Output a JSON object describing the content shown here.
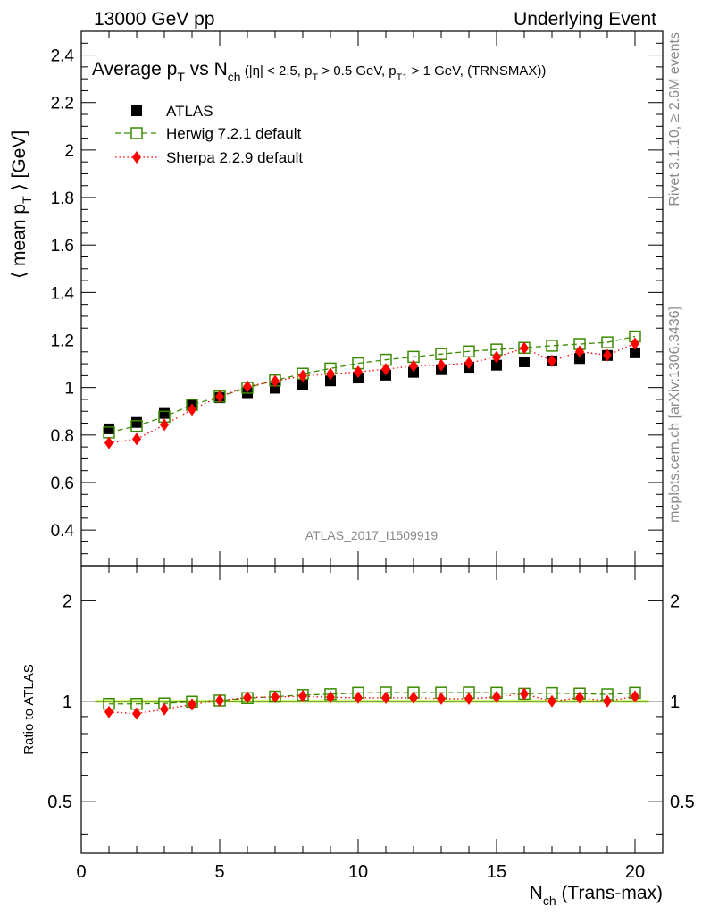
{
  "header": {
    "left": "13000 GeV pp",
    "right": "Underlying Event"
  },
  "plot_title": {
    "main": "Average p",
    "main_sub": "T",
    "vs": " vs N",
    "vs_sub": "ch",
    "cuts_1": " (|η| < 2.5, p",
    "cuts_1_sub": "T",
    "cuts_2": " > 0.5 GeV, p",
    "cuts_2_sub": "T1",
    "cuts_3": " > 1 GeV, (TRNSMAX))"
  },
  "side_labels": {
    "rivet": "Rivet 3.1.10, ≥ 2.6M events",
    "mcplots": "mcplots.cern.ch [arXiv:1306.3436]"
  },
  "analysis_id": "ATLAS_2017_I1509919",
  "colors": {
    "atlas": "#000000",
    "herwig": "#3a8a00",
    "sherpa": "#ff0000",
    "band": "#ccff66"
  },
  "chart_data": [
    {
      "type": "scatter",
      "name": "main",
      "ylabel_pre": "⟨ mean p",
      "ylabel_sub": "T",
      "ylabel_post": " ⟩ [GeV]",
      "xlim": [
        0,
        21
      ],
      "ylim": [
        0.25,
        2.5
      ],
      "yticks": [
        0.4,
        0.6,
        0.8,
        1,
        1.2,
        1.4,
        1.6,
        1.8,
        2,
        2.2,
        2.4
      ],
      "ytick_labels": [
        "0.4",
        "0.6",
        "0.8",
        "1",
        "1.2",
        "1.4",
        "1.6",
        "1.8",
        "2",
        "2.2",
        "2.4"
      ],
      "x": [
        1,
        2,
        3,
        4,
        5,
        6,
        7,
        8,
        9,
        10,
        11,
        12,
        13,
        14,
        15,
        16,
        17,
        18,
        19,
        20
      ],
      "series": [
        {
          "name": "ATLAS",
          "marker": "filled-square",
          "values": [
            0.826,
            0.853,
            0.891,
            0.927,
            0.957,
            0.978,
            0.997,
            1.013,
            1.028,
            1.04,
            1.052,
            1.064,
            1.075,
            1.085,
            1.094,
            1.108,
            1.112,
            1.122,
            1.135,
            1.146
          ]
        },
        {
          "name": "Herwig 7.2.1 default",
          "marker": "open-square",
          "line": "dashed",
          "values": [
            0.811,
            0.838,
            0.877,
            0.927,
            0.962,
            0.999,
            1.03,
            1.058,
            1.08,
            1.102,
            1.117,
            1.129,
            1.141,
            1.152,
            1.16,
            1.167,
            1.176,
            1.183,
            1.19,
            1.215
          ]
        },
        {
          "name": "Sherpa 2.2.9 default",
          "marker": "filled-diamond",
          "line": "dotted",
          "values": [
            0.767,
            0.783,
            0.843,
            0.907,
            0.962,
            1.004,
            1.027,
            1.049,
            1.057,
            1.066,
            1.077,
            1.091,
            1.094,
            1.103,
            1.128,
            1.166,
            1.112,
            1.151,
            1.136,
            1.185
          ]
        }
      ]
    },
    {
      "type": "scatter",
      "name": "ratio",
      "ylabel": "Ratio to ATLAS",
      "xlabel_pre": "N",
      "xlabel_sub": "ch",
      "xlabel_post": " (Trans-max)",
      "xlim": [
        0,
        21
      ],
      "ylim": [
        0.35,
        2.55
      ],
      "yscale": "log",
      "yticks": [
        0.5,
        1,
        2
      ],
      "ytick_labels": [
        "0.5",
        "1",
        "2"
      ],
      "xticks": [
        0,
        5,
        10,
        15,
        20
      ],
      "xtick_labels": [
        "0",
        "5",
        "10",
        "15",
        "20"
      ],
      "x": [
        1,
        2,
        3,
        4,
        5,
        6,
        7,
        8,
        9,
        10,
        11,
        12,
        13,
        14,
        15,
        16,
        17,
        18,
        19,
        20
      ],
      "series": [
        {
          "name": "Herwig 7.2.1 default",
          "values": [
            0.982,
            0.982,
            0.985,
            0.997,
            1.005,
            1.022,
            1.033,
            1.044,
            1.05,
            1.06,
            1.062,
            1.061,
            1.061,
            1.062,
            1.06,
            1.053,
            1.058,
            1.054,
            1.049,
            1.06
          ]
        },
        {
          "name": "Sherpa 2.2.9 default",
          "values": [
            0.929,
            0.918,
            0.946,
            0.978,
            1.005,
            1.027,
            1.03,
            1.036,
            1.028,
            1.025,
            1.024,
            1.025,
            1.018,
            1.017,
            1.031,
            1.052,
            1.0,
            1.026,
            1.001,
            1.034
          ]
        }
      ]
    }
  ]
}
